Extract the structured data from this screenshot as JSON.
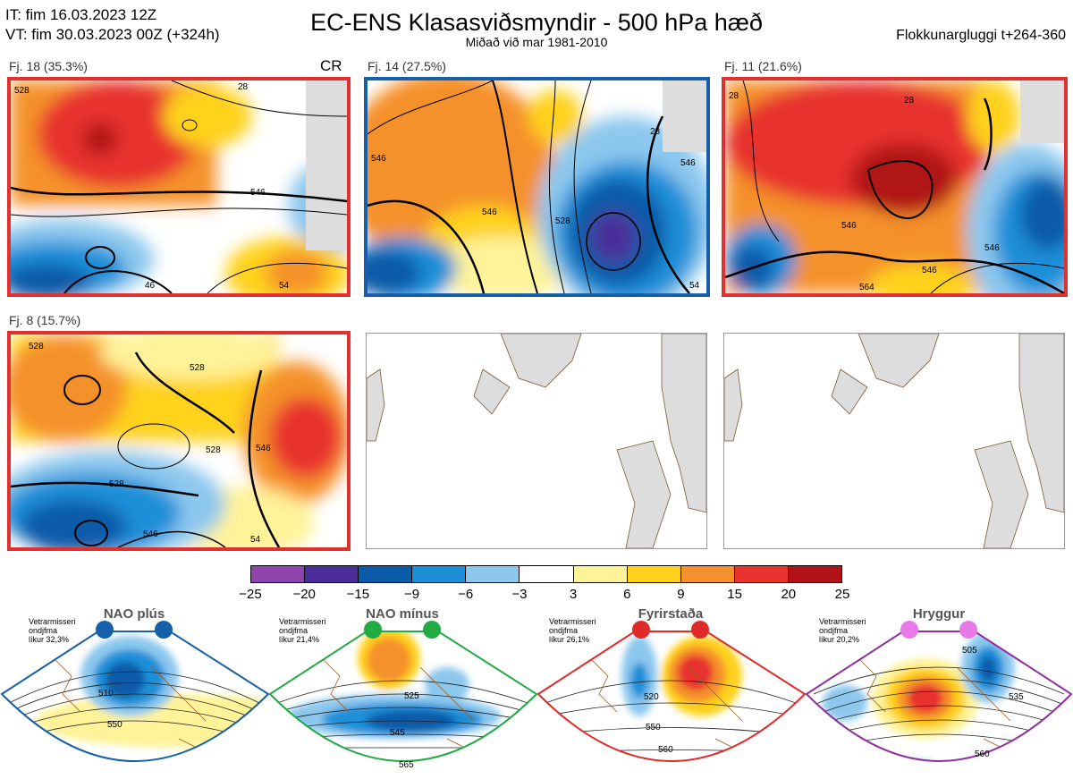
{
  "header": {
    "it_line": "IT: fim 16.03.2023 12Z",
    "vt_line": "VT: fim 30.03.2023 00Z  (+324h)",
    "title": "EC-ENS Klasasviðsmyndir - 500 hPa hæð",
    "subtitle": "Miðað við mar 1981-2010",
    "window": "Flokkunargluggi t+264-360"
  },
  "clusters": [
    {
      "label": "Fj. 18 (35.3%)",
      "border_color": "#e03030",
      "tag": "CR",
      "contours": [
        "528",
        "546",
        "46",
        "54",
        "28"
      ]
    },
    {
      "label": "Fj. 14 (27.5%)",
      "border_color": "#1560a8",
      "contours": [
        "546",
        "528",
        "546",
        "28",
        "546",
        "54"
      ]
    },
    {
      "label": "Fj. 11 (21.6%)",
      "border_color": "#e03030",
      "contours": [
        "28",
        "546",
        "546",
        "564",
        "546",
        "28"
      ]
    },
    {
      "label": "Fj. 8 (15.7%)",
      "border_color": "#e03030",
      "contours": [
        "528",
        "528",
        "528",
        "546",
        "528",
        "546",
        "54"
      ]
    }
  ],
  "colorbar": {
    "colors": [
      "#8e44ad",
      "#4b2d9a",
      "#0b5aa8",
      "#1b8fd8",
      "#8cc8ee",
      "#ffffff",
      "#fff39a",
      "#ffd21e",
      "#f5912c",
      "#e8332f",
      "#b01217"
    ],
    "labels": [
      "−25",
      "−20",
      "−15",
      "−9",
      "−6",
      "−3",
      "3",
      "6",
      "9",
      "15",
      "20",
      "25"
    ]
  },
  "regimes": [
    {
      "title": "NAO plús",
      "color": "#1560a8",
      "season": "Vetrarmisseri",
      "months": "ondjfma",
      "prob": "líkur 32,3%",
      "contours": [
        "510",
        "550"
      ]
    },
    {
      "title": "NAO mínus",
      "color": "#22aa44",
      "season": "Vetrarmisseri",
      "months": "ondjfma",
      "prob": "líkur 21,4%",
      "contours": [
        "525",
        "545",
        "565"
      ]
    },
    {
      "title": "Fyrirstaða",
      "color": "#e02a2a",
      "season": "Vetrarmisseri",
      "months": "ondjfma",
      "prob": "líkur 26,1%",
      "contours": [
        "520",
        "550",
        "560"
      ]
    },
    {
      "title": "Hryggur",
      "color": "#e87ae8",
      "season": "Vetrarmisseri",
      "months": "ondjfma",
      "prob": "líkur 20,2%",
      "contours": [
        "505",
        "535",
        "560"
      ]
    }
  ]
}
